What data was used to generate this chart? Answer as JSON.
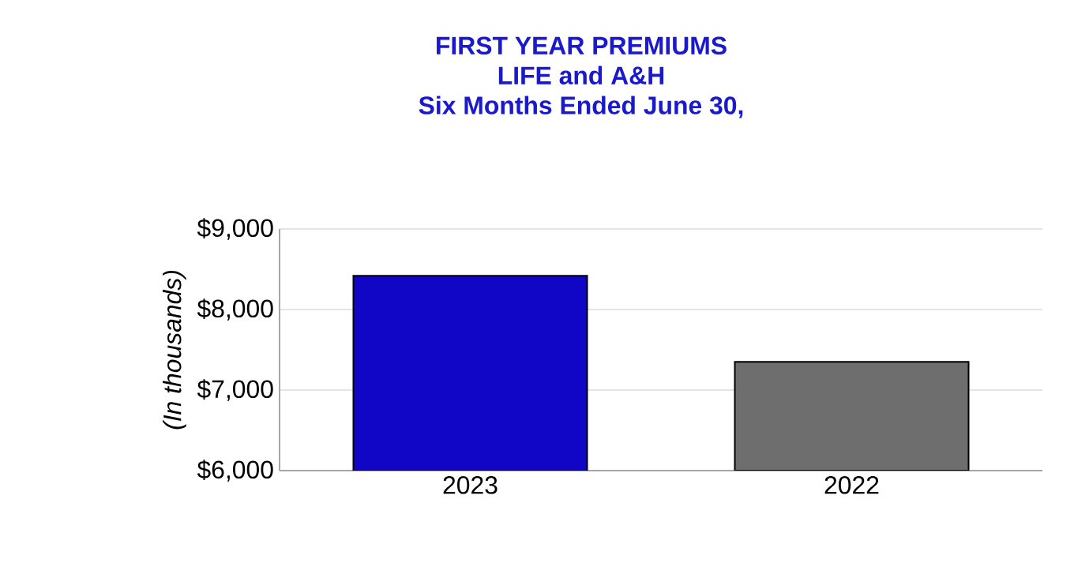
{
  "chart_data": {
    "type": "bar",
    "title": "FIRST YEAR PREMIUMS\nLIFE and A&H\nSix Months Ended June 30,",
    "ylabel": "*(In thousands)*",
    "categories": [
      "2023",
      "2022"
    ],
    "colors": [
      "#1206c6",
      "#6e6e6e"
    ],
    "values": [
      8420,
      7350
    ],
    "ylim": [
      6000,
      9000
    ],
    "yticks": [
      {
        "value": 6000,
        "label": "$6,000"
      },
      {
        "value": 7000,
        "label": "$7,000"
      },
      {
        "value": 8000,
        "label": "$8,000"
      },
      {
        "value": 9000,
        "label": "$9,000"
      }
    ],
    "grid": "y"
  }
}
